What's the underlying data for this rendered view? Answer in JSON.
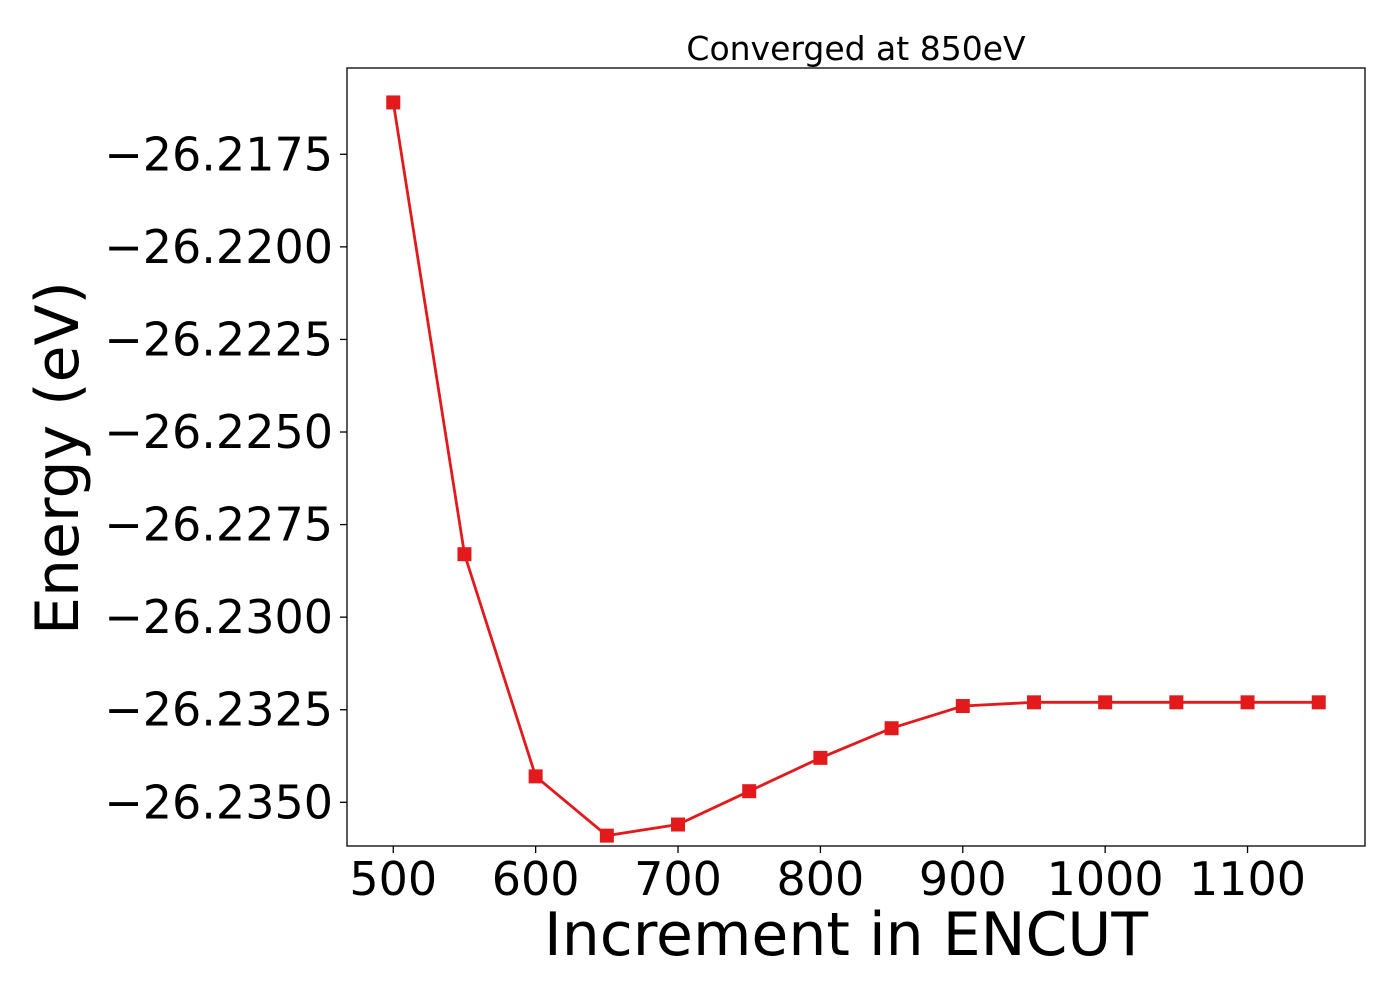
{
  "chart_data": {
    "type": "line",
    "title": "Converged at 850eV",
    "xlabel": "Increment in ENCUT",
    "ylabel": "Energy (eV)",
    "x": [
      500,
      550,
      600,
      650,
      700,
      750,
      800,
      850,
      900,
      950,
      1000,
      1050,
      1100,
      1150
    ],
    "series": [
      {
        "values": [
          -26.2161,
          -26.2283,
          -26.2343,
          -26.2359,
          -26.2356,
          -26.2347,
          -26.2338,
          -26.233,
          -26.2324,
          -26.2323,
          -26.2323,
          -26.2323,
          -26.2323,
          -26.2323
        ],
        "color": "#e31a1c",
        "marker": "square"
      }
    ],
    "xticks": [
      500,
      600,
      700,
      800,
      900,
      1000,
      1100
    ],
    "xtick_labels": [
      "500",
      "600",
      "700",
      "800",
      "900",
      "1000",
      "1100"
    ],
    "yticks": [
      -26.2175,
      -26.22,
      -26.2225,
      -26.225,
      -26.2275,
      -26.23,
      -26.2325,
      -26.235
    ],
    "ytick_labels": [
      "−26.2175",
      "−26.2200",
      "−26.2225",
      "−26.2250",
      "−26.2275",
      "−26.2300",
      "−26.2325",
      "−26.2350"
    ],
    "xlim": [
      467.5,
      1182.5
    ],
    "ylim": [
      -26.23618,
      -26.21517
    ],
    "grid": false,
    "legend": "none"
  }
}
